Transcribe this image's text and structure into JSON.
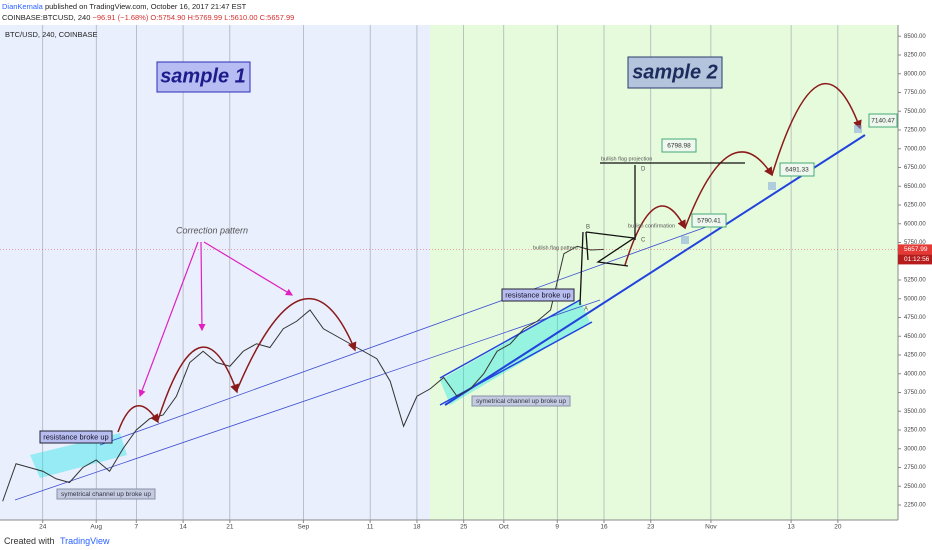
{
  "header": {
    "author": "DianKemala",
    "published": "published on TradingView.com, October 16, 2017 21:47 EST",
    "symbol": "COINBASE:BTCUSD, 240",
    "change": "−96.91 (−1.68%)",
    "ohlc": "O:5754.90 H:5769.99 L:5610.00 C:5657.99"
  },
  "chart_data": {
    "type": "line",
    "title": "BTC/USD, 240, COINBASE",
    "color": "#333333",
    "x": [
      17,
      19,
      21,
      23,
      25,
      27,
      29,
      31,
      33,
      35,
      37,
      39,
      41,
      43,
      45,
      47,
      49,
      51,
      53,
      55,
      57,
      59,
      61,
      63,
      65,
      67,
      69,
      71,
      73,
      75,
      77,
      79,
      81,
      83,
      85,
      87,
      89,
      91,
      93,
      95,
      97,
      99,
      101,
      103,
      105,
      107
    ],
    "values": [
      2300,
      2800,
      2750,
      2700,
      2600,
      2550,
      2750,
      2850,
      2700,
      3000,
      3250,
      3400,
      3450,
      3700,
      4150,
      4300,
      4150,
      4100,
      4300,
      4400,
      4350,
      4600,
      4700,
      4850,
      4600,
      4500,
      4400,
      4300,
      4200,
      3900,
      3300,
      3700,
      3800,
      3950,
      3700,
      3800,
      4000,
      4300,
      4400,
      4600,
      4700,
      4850,
      5600,
      5700,
      5650,
      5657.99
    ],
    "xlim": [
      16.6,
      151
    ],
    "ylim": [
      2050,
      8650
    ],
    "grid": true,
    "xticks": [
      {
        "value": 23,
        "label": "24"
      },
      {
        "value": 31,
        "label": "Aug"
      },
      {
        "value": 37,
        "label": "7"
      },
      {
        "value": 44,
        "label": "14"
      },
      {
        "value": 51,
        "label": "21"
      },
      {
        "value": 62,
        "label": "Sep"
      },
      {
        "value": 72,
        "label": "11"
      },
      {
        "value": 79,
        "label": "18"
      },
      {
        "value": 86,
        "label": "25"
      },
      {
        "value": 92,
        "label": "Oct"
      },
      {
        "value": 100,
        "label": "9"
      },
      {
        "value": 107,
        "label": "16"
      },
      {
        "value": 114,
        "label": "23"
      },
      {
        "value": 123,
        "label": "Nov"
      },
      {
        "value": 135,
        "label": "13"
      },
      {
        "value": 142,
        "label": "20"
      }
    ],
    "yticks": [
      {
        "value": 2250,
        "label": "2250.00"
      },
      {
        "value": 2500,
        "label": "2500.00"
      },
      {
        "value": 2750,
        "label": "2750.00"
      },
      {
        "value": 3000,
        "label": "3000.00"
      },
      {
        "value": 3250,
        "label": "3250.00"
      },
      {
        "value": 3500,
        "label": "3500.00"
      },
      {
        "value": 3750,
        "label": "3750.00"
      },
      {
        "value": 4000,
        "label": "4000.00"
      },
      {
        "value": 4250,
        "label": "4250.00"
      },
      {
        "value": 4500,
        "label": "4500.00"
      },
      {
        "value": 4750,
        "label": "4750.00"
      },
      {
        "value": 5000,
        "label": "5000.00"
      },
      {
        "value": 5250,
        "label": "5250.00"
      },
      {
        "value": 5500,
        "label": "5500.00"
      },
      {
        "value": 5750,
        "label": "5750.00"
      },
      {
        "value": 6000,
        "label": "6000.00"
      },
      {
        "value": 6250,
        "label": "6250.00"
      },
      {
        "value": 6500,
        "label": "6500.00"
      },
      {
        "value": 6750,
        "label": "6750.00"
      },
      {
        "value": 7000,
        "label": "7000.00"
      },
      {
        "value": 7250,
        "label": "7250.00"
      },
      {
        "value": 7500,
        "label": "7500.00"
      },
      {
        "value": 7750,
        "label": "7750.00"
      },
      {
        "value": 8000,
        "label": "8000.00"
      },
      {
        "value": 8250,
        "label": "8250.00"
      },
      {
        "value": 8500,
        "label": "8500.00"
      }
    ],
    "last_price": {
      "value": 5657.99,
      "label": "5657.99"
    },
    "countdown": "01:12:56",
    "annotations": {
      "sample1": "sample 1",
      "sample2": "sample 2",
      "correction": "Correction pattern",
      "resistance1": "resistance broke up",
      "resistance2": "resistance broke up",
      "channel1": "symetrical channel up broke up",
      "channel2": "symetrical channel up broke up",
      "flag_pattern": "bullish flag pattern",
      "flag_projection": "bullish flag projection",
      "confirmation": "bullish confirmation",
      "target1": "6798.98",
      "target2": "5790.41",
      "target3": "6491.33",
      "target4": "7140.47",
      "a": "A",
      "b": "B",
      "c": "C",
      "d": "D"
    }
  },
  "footer": {
    "created": "Created with",
    "brand": "TradingView"
  }
}
